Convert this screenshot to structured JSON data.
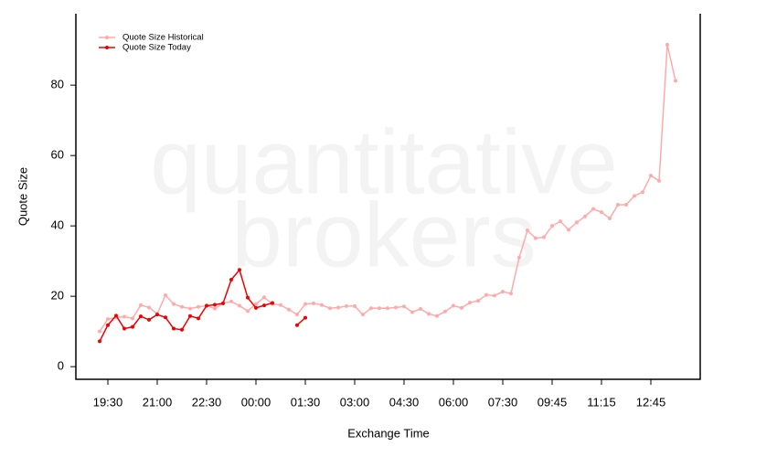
{
  "chart_data": {
    "type": "line",
    "watermark": [
      "quantitative",
      "brokers"
    ],
    "x_label": "Exchange Time",
    "y_label": "Quote Size",
    "categories": [
      null,
      "19:30",
      null,
      null,
      null,
      null,
      null,
      "21:00",
      null,
      null,
      null,
      null,
      null,
      "22:30",
      null,
      null,
      null,
      null,
      null,
      "00:00",
      null,
      null,
      null,
      null,
      null,
      "01:30",
      null,
      null,
      null,
      null,
      null,
      "03:00",
      null,
      null,
      null,
      null,
      null,
      "04:30",
      null,
      null,
      null,
      null,
      null,
      "06:00",
      null,
      null,
      null,
      null,
      null,
      "07:30",
      null,
      null,
      null,
      null,
      null,
      "09:45",
      null,
      null,
      null,
      null,
      null,
      "11:15",
      null,
      null,
      null,
      null,
      null,
      "12:45",
      null,
      null,
      null
    ],
    "series": [
      {
        "name": "Quote Size Historical",
        "color": "#ffaaaa",
        "values": [
          10,
          13.5,
          14,
          14.2,
          13.7,
          17.5,
          16.8,
          15,
          20.3,
          17.8,
          17,
          16.5,
          17,
          17.3,
          16.5,
          18,
          18.5,
          17.3,
          15.8,
          17.8,
          19.7,
          17.8,
          17.5,
          16.2,
          14.8,
          17.8,
          18,
          17.5,
          16.6,
          16.8,
          17.2,
          17.2,
          14.8,
          16.6,
          16.6,
          16.6,
          16.8,
          17.1,
          15.5,
          16.4,
          15,
          14.4,
          15.7,
          17.3,
          16.7,
          18.2,
          18.7,
          20.4,
          20.2,
          21.3,
          20.8,
          31,
          38.7,
          36.5,
          36.8,
          40,
          41.3,
          38.9,
          41,
          42.7,
          44.8,
          43.9,
          42.1,
          46,
          46,
          48.5,
          49.6,
          54.3,
          52.8,
          91.5,
          81.2
        ]
      },
      {
        "name": "Quote Size Today",
        "color": "#ee0000",
        "values": [
          7.2,
          11.8,
          14.5,
          10.8,
          11.3,
          14.3,
          13.3,
          14.8,
          14,
          10.8,
          10.5,
          14.4,
          13.7,
          17.3,
          17.6,
          18,
          24.7,
          27.5,
          19.6,
          16.7,
          17.4,
          18.1,
          null,
          null,
          11.8,
          13.9,
          null,
          null,
          null,
          null,
          null,
          null,
          null,
          null,
          null,
          null,
          null,
          null,
          null,
          null,
          null,
          null,
          null,
          null,
          null,
          null,
          null,
          null,
          null,
          null,
          null,
          null,
          null,
          null,
          null,
          null,
          null,
          null,
          null,
          null,
          null,
          null,
          null,
          null,
          null,
          null,
          null,
          null,
          null,
          null,
          null
        ]
      }
    ],
    "ylim": [
      -3.6,
      100.3
    ],
    "yticks": [
      0,
      20,
      40,
      60,
      80
    ],
    "legend": "top-left"
  }
}
